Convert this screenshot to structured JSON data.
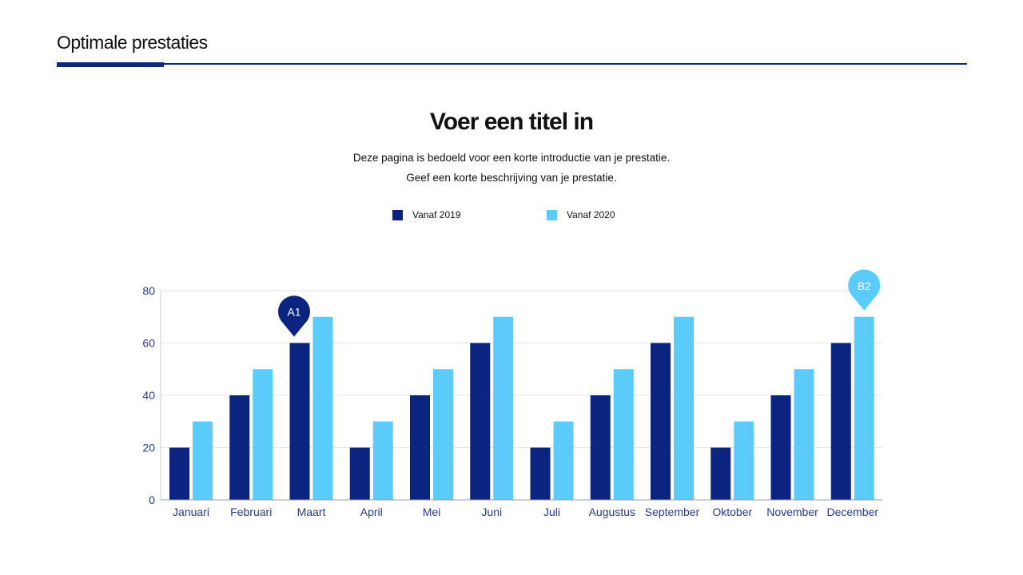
{
  "header": {
    "title": "Optimale prestaties"
  },
  "main": {
    "title": "Voer een titel in",
    "subtitle_1": "Deze pagina is bedoeld voor een korte introductie van je prestatie.",
    "subtitle_2": "Geef een korte beschrijving van je prestatie."
  },
  "chart_data": {
    "type": "bar",
    "categories": [
      "Januari",
      "Februari",
      "Maart",
      "April",
      "Mei",
      "Juni",
      "Juli",
      "Augustus",
      "September",
      "Oktober",
      "November",
      "December"
    ],
    "series": [
      {
        "name": "Vanaf 2019",
        "color": "#0a2480",
        "values": [
          20,
          40,
          60,
          20,
          40,
          60,
          20,
          40,
          60,
          20,
          40,
          60
        ]
      },
      {
        "name": "Vanaf 2020",
        "color": "#5bcbfa",
        "values": [
          30,
          50,
          70,
          30,
          50,
          70,
          30,
          50,
          70,
          30,
          50,
          70
        ]
      }
    ],
    "ylim": [
      0,
      80
    ],
    "yticks": [
      0,
      20,
      40,
      60,
      80
    ],
    "grid": true,
    "legend": "top",
    "annotations": [
      {
        "label": "A1",
        "category": "Maart",
        "series": 0,
        "color": "#0a2480"
      },
      {
        "label": "B2",
        "category": "December",
        "series": 1,
        "color": "#5bcbfa"
      }
    ]
  }
}
